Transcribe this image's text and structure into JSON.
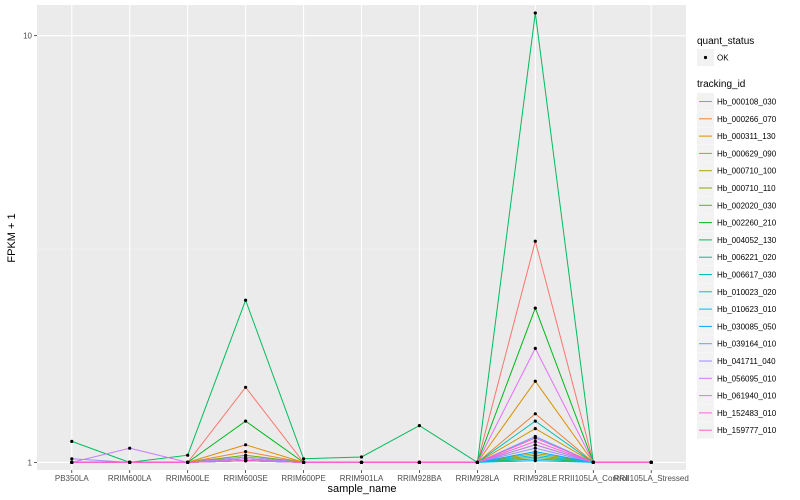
{
  "chart_data": {
    "type": "line",
    "xlabel": "sample_name",
    "ylabel": "FPKM + 1",
    "y_scale": "log10",
    "ylim": [
      0.96,
      11.8
    ],
    "y_ticks": [
      1,
      10
    ],
    "y_tick_labels": [
      "1",
      "10"
    ],
    "grid": true,
    "legend_position": "right",
    "categories": [
      "PB350LA",
      "RRIM600LA",
      "RRIM600LE",
      "RRIM600SE",
      "RRIM600PE",
      "RRIM901LA",
      "RRIM928BA",
      "RRIM928LA",
      "RRIM928LE",
      "RRII105LA_Control",
      "RRII105LA_Stressed"
    ],
    "point_legend": {
      "title": "quant_status",
      "entries": [
        "OK"
      ]
    },
    "line_legend_title": "tracking_id",
    "series": [
      {
        "name": "Hb_000108_030",
        "color": "#F8766D",
        "values": [
          1,
          1,
          1,
          1.5,
          1,
          1,
          1,
          1,
          3.3,
          1,
          1
        ]
      },
      {
        "name": "Hb_000266_070",
        "color": "#EC8239",
        "values": [
          1,
          1,
          1,
          1.06,
          1,
          1,
          1,
          1,
          1.3,
          1,
          1
        ]
      },
      {
        "name": "Hb_000311_130",
        "color": "#DB8E00",
        "values": [
          1,
          1,
          1,
          1.1,
          1,
          1,
          1,
          1,
          1.55,
          1,
          1
        ]
      },
      {
        "name": "Hb_000629_090",
        "color": "#C79800",
        "values": [
          1,
          1,
          1,
          1.02,
          1,
          1,
          1,
          1,
          1.2,
          1,
          1
        ]
      },
      {
        "name": "Hb_000710_100",
        "color": "#AEA200",
        "values": [
          1,
          1,
          1,
          1.01,
          1,
          1,
          1,
          1,
          1.05,
          1,
          1
        ]
      },
      {
        "name": "Hb_000710_110",
        "color": "#8FAA00",
        "values": [
          1,
          1,
          1,
          1.01,
          1,
          1,
          1,
          1,
          1.03,
          1,
          1
        ]
      },
      {
        "name": "Hb_002020_030",
        "color": "#64B200",
        "values": [
          1,
          1,
          1,
          1.04,
          1,
          1,
          1,
          1,
          1.1,
          1,
          1
        ]
      },
      {
        "name": "Hb_002260_210",
        "color": "#00B81B",
        "values": [
          1,
          1,
          1,
          1.25,
          1,
          1,
          1,
          1,
          2.3,
          1,
          1
        ]
      },
      {
        "name": "Hb_004052_130",
        "color": "#00BD5C",
        "values": [
          1.12,
          1,
          1.04,
          2.4,
          1.02,
          1.03,
          1.22,
          1,
          11.3,
          1,
          1
        ]
      },
      {
        "name": "Hb_006221_020",
        "color": "#00C08B",
        "values": [
          1,
          1,
          1,
          1.01,
          1,
          1,
          1,
          1,
          1.02,
          1,
          1
        ]
      },
      {
        "name": "Hb_006617_030",
        "color": "#00C1B2",
        "values": [
          1,
          1,
          1,
          1.02,
          1,
          1,
          1,
          1,
          1.25,
          1,
          1
        ]
      },
      {
        "name": "Hb_010023_020",
        "color": "#00BFD4",
        "values": [
          1,
          1,
          1,
          1.01,
          1,
          1,
          1,
          1,
          1.04,
          1,
          1
        ]
      },
      {
        "name": "Hb_010623_010",
        "color": "#00B8F0",
        "values": [
          1,
          1,
          1,
          1.01,
          1,
          1,
          1,
          1,
          1.01,
          1,
          1
        ]
      },
      {
        "name": "Hb_030085_050",
        "color": "#00ABFD",
        "values": [
          1,
          1,
          1,
          1.01,
          1,
          1,
          1,
          1,
          1.06,
          1,
          1
        ]
      },
      {
        "name": "Hb_039164_010",
        "color": "#619CFF",
        "values": [
          1,
          1,
          1,
          1.01,
          1,
          1,
          1,
          1,
          1.15,
          1,
          1
        ]
      },
      {
        "name": "Hb_041711_040",
        "color": "#9E8BFF",
        "values": [
          1.02,
          1,
          1,
          1.03,
          1,
          1,
          1,
          1,
          1.08,
          1,
          1
        ]
      },
      {
        "name": "Hb_056095_010",
        "color": "#C77CFF",
        "values": [
          1,
          1.08,
          1,
          1.02,
          1,
          1,
          1,
          1,
          1.1,
          1,
          1
        ]
      },
      {
        "name": "Hb_061940_010",
        "color": "#E46FF6",
        "values": [
          1,
          1,
          1,
          1.01,
          1,
          1,
          1,
          1,
          1.85,
          1,
          1
        ]
      },
      {
        "name": "Hb_152483_010",
        "color": "#F564E3",
        "values": [
          1,
          1,
          1,
          1.01,
          1,
          1,
          1,
          1,
          1.12,
          1,
          1
        ]
      },
      {
        "name": "Hb_159777_010",
        "color": "#FF61C3",
        "values": [
          1,
          1,
          1,
          1.01,
          1,
          1,
          1,
          1,
          1.14,
          1,
          1
        ]
      }
    ]
  }
}
